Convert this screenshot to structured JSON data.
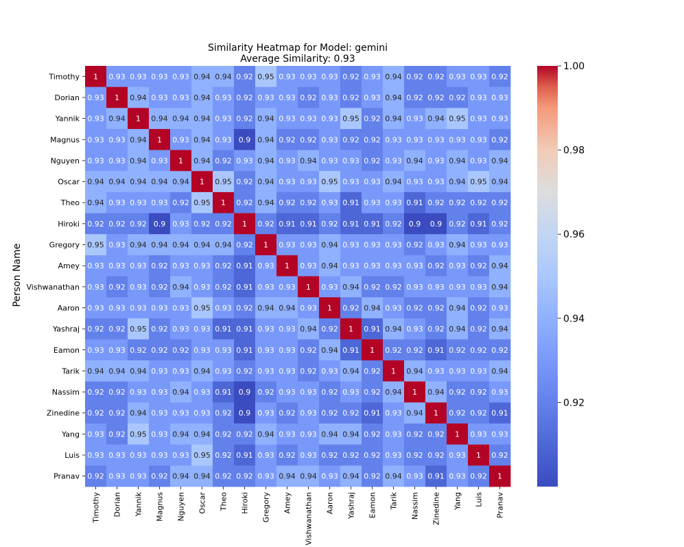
{
  "chart_data": {
    "type": "heatmap",
    "title": "Similarity Heatmap for Model: gemini",
    "subtitle": "Average Similarity: 0.93",
    "xlabel": "",
    "ylabel": "Person Name",
    "categories": [
      "Timothy",
      "Dorian",
      "Yannik",
      "Magnus",
      "Nguyen",
      "Oscar",
      "Theo",
      "Hiroki",
      "Gregory",
      "Amey",
      "Vishwanathan",
      "Aaron",
      "Yashraj",
      "Eamon",
      "Tarik",
      "Nassim",
      "Zinedine",
      "Yang",
      "Luis",
      "Pranav"
    ],
    "values": [
      [
        1,
        0.93,
        0.93,
        0.93,
        0.93,
        0.94,
        0.94,
        0.92,
        0.95,
        0.93,
        0.93,
        0.93,
        0.92,
        0.93,
        0.94,
        0.92,
        0.92,
        0.93,
        0.93,
        0.92
      ],
      [
        0.93,
        1,
        0.94,
        0.93,
        0.93,
        0.94,
        0.93,
        0.92,
        0.93,
        0.93,
        0.92,
        0.93,
        0.92,
        0.93,
        0.94,
        0.92,
        0.92,
        0.92,
        0.93,
        0.93
      ],
      [
        0.93,
        0.94,
        1,
        0.94,
        0.94,
        0.94,
        0.93,
        0.92,
        0.94,
        0.93,
        0.93,
        0.93,
        0.95,
        0.92,
        0.94,
        0.93,
        0.94,
        0.95,
        0.93,
        0.93
      ],
      [
        0.93,
        0.93,
        0.94,
        1,
        0.93,
        0.94,
        0.93,
        0.9,
        0.94,
        0.92,
        0.92,
        0.93,
        0.92,
        0.92,
        0.93,
        0.93,
        0.93,
        0.93,
        0.93,
        0.92
      ],
      [
        0.93,
        0.93,
        0.94,
        0.93,
        1,
        0.94,
        0.92,
        0.93,
        0.94,
        0.93,
        0.94,
        0.93,
        0.93,
        0.92,
        0.93,
        0.94,
        0.93,
        0.94,
        0.93,
        0.94
      ],
      [
        0.94,
        0.94,
        0.94,
        0.94,
        0.94,
        1,
        0.95,
        0.92,
        0.94,
        0.93,
        0.93,
        0.95,
        0.93,
        0.93,
        0.94,
        0.93,
        0.93,
        0.94,
        0.95,
        0.94
      ],
      [
        0.94,
        0.93,
        0.93,
        0.93,
        0.92,
        0.95,
        1,
        0.92,
        0.94,
        0.92,
        0.92,
        0.93,
        0.91,
        0.93,
        0.93,
        0.91,
        0.92,
        0.92,
        0.92,
        0.92
      ],
      [
        0.92,
        0.92,
        0.92,
        0.9,
        0.93,
        0.92,
        0.92,
        1,
        0.92,
        0.91,
        0.91,
        0.92,
        0.91,
        0.91,
        0.92,
        0.9,
        0.9,
        0.92,
        0.91,
        0.92
      ],
      [
        0.95,
        0.93,
        0.94,
        0.94,
        0.94,
        0.94,
        0.94,
        0.92,
        1,
        0.93,
        0.93,
        0.94,
        0.93,
        0.93,
        0.93,
        0.92,
        0.93,
        0.94,
        0.93,
        0.93
      ],
      [
        0.93,
        0.93,
        0.93,
        0.92,
        0.93,
        0.93,
        0.92,
        0.91,
        0.93,
        1,
        0.93,
        0.94,
        0.93,
        0.93,
        0.93,
        0.93,
        0.92,
        0.93,
        0.92,
        0.94
      ],
      [
        0.93,
        0.92,
        0.93,
        0.92,
        0.94,
        0.93,
        0.92,
        0.91,
        0.93,
        0.93,
        1,
        0.93,
        0.94,
        0.92,
        0.92,
        0.93,
        0.93,
        0.93,
        0.93,
        0.94
      ],
      [
        0.93,
        0.93,
        0.93,
        0.93,
        0.93,
        0.95,
        0.93,
        0.92,
        0.94,
        0.94,
        0.93,
        1,
        0.92,
        0.94,
        0.93,
        0.92,
        0.92,
        0.94,
        0.92,
        0.93
      ],
      [
        0.92,
        0.92,
        0.95,
        0.92,
        0.93,
        0.93,
        0.91,
        0.91,
        0.93,
        0.93,
        0.94,
        0.92,
        1,
        0.91,
        0.94,
        0.93,
        0.92,
        0.94,
        0.92,
        0.94
      ],
      [
        0.93,
        0.93,
        0.92,
        0.92,
        0.92,
        0.93,
        0.93,
        0.91,
        0.93,
        0.93,
        0.92,
        0.94,
        0.91,
        1,
        0.92,
        0.92,
        0.91,
        0.92,
        0.92,
        0.92
      ],
      [
        0.94,
        0.94,
        0.94,
        0.93,
        0.93,
        0.94,
        0.93,
        0.92,
        0.93,
        0.93,
        0.92,
        0.93,
        0.94,
        0.92,
        1,
        0.94,
        0.93,
        0.93,
        0.93,
        0.94
      ],
      [
        0.92,
        0.92,
        0.93,
        0.93,
        0.94,
        0.93,
        0.91,
        0.9,
        0.92,
        0.93,
        0.93,
        0.92,
        0.93,
        0.92,
        0.94,
        1,
        0.94,
        0.92,
        0.92,
        0.93
      ],
      [
        0.92,
        0.92,
        0.94,
        0.93,
        0.93,
        0.93,
        0.92,
        0.9,
        0.93,
        0.92,
        0.93,
        0.92,
        0.92,
        0.91,
        0.93,
        0.94,
        1,
        0.92,
        0.92,
        0.91
      ],
      [
        0.93,
        0.92,
        0.95,
        0.93,
        0.94,
        0.94,
        0.92,
        0.92,
        0.94,
        0.93,
        0.93,
        0.94,
        0.94,
        0.92,
        0.93,
        0.92,
        0.92,
        1,
        0.93,
        0.93
      ],
      [
        0.93,
        0.93,
        0.93,
        0.93,
        0.93,
        0.95,
        0.92,
        0.91,
        0.93,
        0.92,
        0.93,
        0.92,
        0.92,
        0.92,
        0.93,
        0.92,
        0.92,
        0.93,
        1,
        0.92
      ],
      [
        0.92,
        0.93,
        0.93,
        0.92,
        0.94,
        0.94,
        0.92,
        0.92,
        0.93,
        0.94,
        0.94,
        0.93,
        0.94,
        0.92,
        0.94,
        0.93,
        0.91,
        0.93,
        0.92,
        1
      ]
    ],
    "colormap": "coolwarm",
    "colorbar": {
      "min": 0.9,
      "max": 1.0,
      "ticks": [
        0.92,
        0.94,
        0.96,
        0.98,
        1.0
      ],
      "tick_labels": [
        "0.92",
        "0.94",
        "0.96",
        "0.98",
        "1.00"
      ]
    }
  }
}
